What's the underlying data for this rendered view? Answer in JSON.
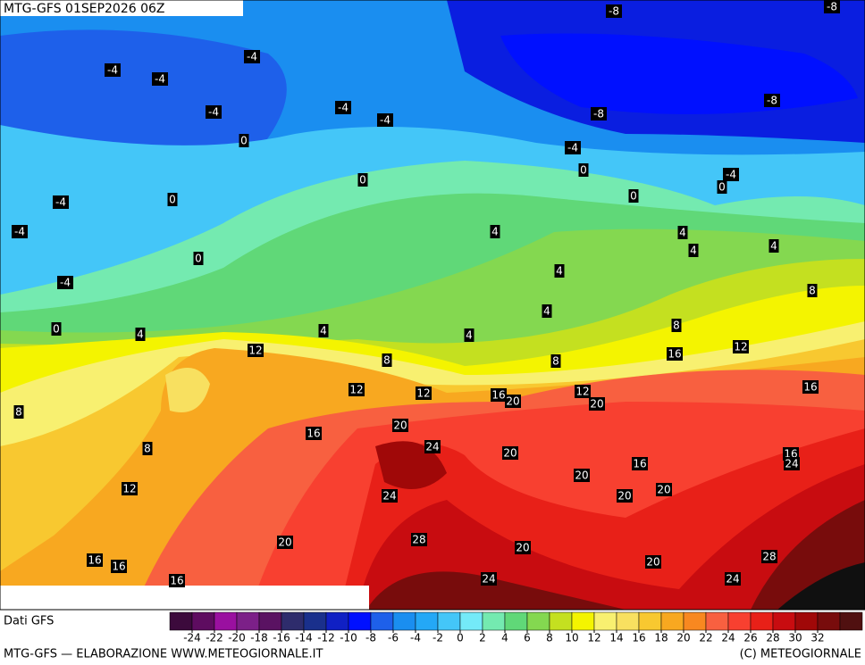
{
  "title": "MTG-GFS 01SEP2026 06Z",
  "contour_labels": [
    -8,
    -8,
    -4,
    -4,
    -4,
    -4,
    -4,
    -4,
    -8,
    -8,
    -4,
    0,
    0,
    -4,
    0,
    0,
    -4,
    0,
    0,
    -4,
    4,
    4,
    4,
    4,
    0,
    -4,
    4,
    8,
    4,
    8,
    0,
    4,
    4,
    4,
    12,
    8,
    8,
    16,
    12,
    12,
    12,
    16,
    20,
    12,
    20,
    16,
    8,
    20,
    16,
    24,
    8,
    20,
    16,
    16,
    24,
    20,
    12,
    24,
    20,
    20,
    28,
    20,
    20,
    16,
    16,
    16,
    20,
    28,
    24,
    24
  ],
  "legend": {
    "title": "Dati GFS",
    "ticks": [
      -24,
      -22,
      -20,
      -18,
      -16,
      -14,
      -12,
      -10,
      -8,
      -6,
      -4,
      -2,
      0,
      2,
      4,
      6,
      8,
      10,
      12,
      14,
      16,
      18,
      20,
      22,
      24,
      26,
      28,
      30,
      32
    ],
    "colors": [
      "#3c0a3c",
      "#5e0c60",
      "#9a10a0",
      "#7c2088",
      "#5a1262",
      "#2e2c6c",
      "#1a308c",
      "#1020c4",
      "#0010ff",
      "#1e60ea",
      "#1a8ef0",
      "#24a8f6",
      "#44c6f8",
      "#74eaf8",
      "#74eab0",
      "#60d878",
      "#84d850",
      "#c4e020",
      "#f4f400",
      "#f8f070",
      "#f8e060",
      "#f8c830",
      "#f8a820",
      "#f88820",
      "#f86040",
      "#f84030",
      "#e82018",
      "#c80c10",
      "#a00808",
      "#780c0c",
      "#501010"
    ]
  },
  "footer": {
    "left": "MTG-GFS — ELABORAZIONE WWW.METEOGIORNALE.IT",
    "right": "(C) METEOGIORNALE"
  }
}
